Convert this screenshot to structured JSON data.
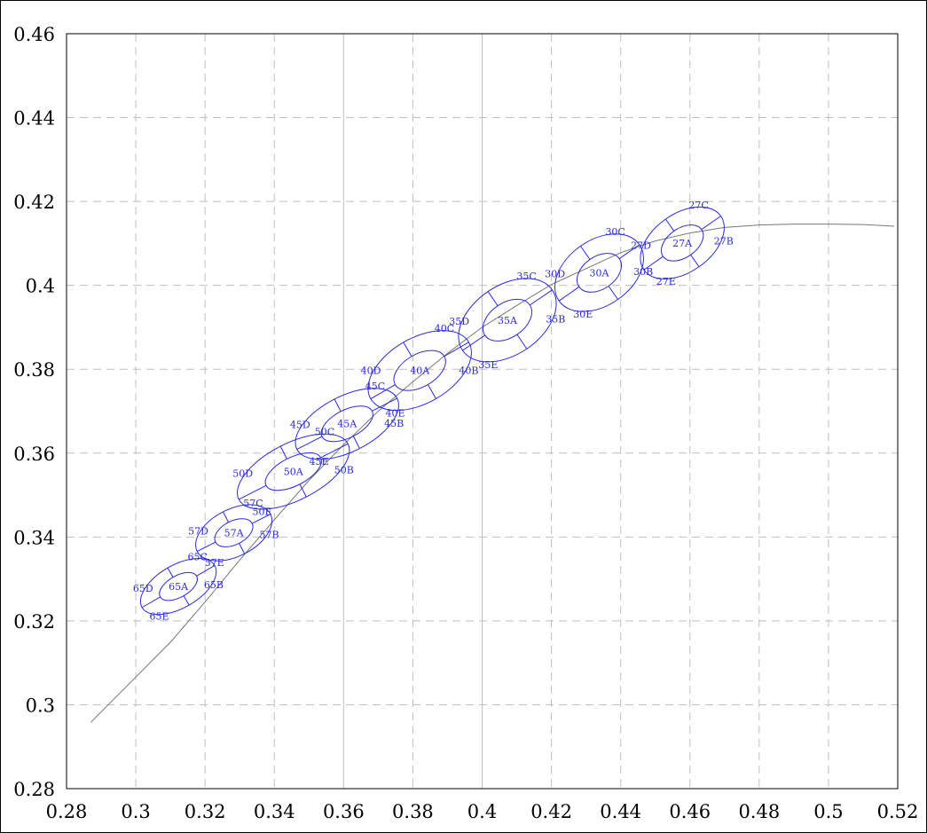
{
  "chart_data": {
    "type": "scatter",
    "title": "",
    "xlabel": "",
    "ylabel": "",
    "xlim": [
      0.28,
      0.52
    ],
    "ylim": [
      0.28,
      0.46
    ],
    "x_ticks": [
      0.28,
      0.3,
      0.32,
      0.34,
      0.36,
      0.38,
      0.4,
      0.42,
      0.44,
      0.46,
      0.48,
      0.5,
      0.52
    ],
    "x_tick_labels": [
      "0.28",
      "0.3",
      "0.32",
      "0.34",
      "0.36",
      "0.38",
      "0.4",
      "0.42",
      "0.44",
      "0.46",
      "0.48",
      "0.5",
      "0.52"
    ],
    "y_ticks": [
      0.28,
      0.3,
      0.32,
      0.34,
      0.36,
      0.38,
      0.4,
      0.42,
      0.44,
      0.46
    ],
    "y_tick_labels": [
      "0.28",
      "0.3",
      "0.32",
      "0.34",
      "0.36",
      "0.38",
      "0.4",
      "0.42",
      "0.44",
      "0.46"
    ],
    "grid": true,
    "colors": {
      "ellipse": "#2a2ae0",
      "curve": "#777777",
      "grid": "#bfbfbf"
    },
    "curve": {
      "x": [
        0.287,
        0.3,
        0.31,
        0.32,
        0.33,
        0.34,
        0.35,
        0.36,
        0.37,
        0.38,
        0.39,
        0.4,
        0.41,
        0.42,
        0.43,
        0.44,
        0.45,
        0.46,
        0.47,
        0.48,
        0.49,
        0.5,
        0.51,
        0.519
      ],
      "y": [
        0.2958,
        0.3066,
        0.3149,
        0.3245,
        0.3345,
        0.3441,
        0.3535,
        0.362,
        0.37,
        0.377,
        0.3838,
        0.39,
        0.3952,
        0.4002,
        0.404,
        0.4078,
        0.4106,
        0.4125,
        0.4138,
        0.4144,
        0.4146,
        0.4146,
        0.4145,
        0.4141
      ]
    },
    "ellipses": [
      {
        "cct": "65",
        "x": 0.3123,
        "y": 0.3282,
        "a": 0.0031,
        "b": 0.01,
        "angle": 60
      },
      {
        "cct": "57",
        "x": 0.3283,
        "y": 0.341,
        "a": 0.0034,
        "b": 0.0098,
        "angle": 63
      },
      {
        "cct": "50",
        "x": 0.3455,
        "y": 0.3556,
        "a": 0.0041,
        "b": 0.0146,
        "angle": 63
      },
      {
        "cct": "45",
        "x": 0.361,
        "y": 0.367,
        "a": 0.004,
        "b": 0.0134,
        "angle": 63
      },
      {
        "cct": "40",
        "x": 0.382,
        "y": 0.3797,
        "a": 0.0047,
        "b": 0.0135,
        "angle": 60
      },
      {
        "cct": "35",
        "x": 0.4073,
        "y": 0.3917,
        "a": 0.005,
        "b": 0.0129,
        "angle": 56
      },
      {
        "cct": "30",
        "x": 0.4338,
        "y": 0.403,
        "a": 0.0047,
        "b": 0.0117,
        "angle": 55
      },
      {
        "cct": "27",
        "x": 0.4578,
        "y": 0.4101,
        "a": 0.0042,
        "b": 0.0112,
        "angle": 55
      }
    ],
    "quadrant_labels": [
      "65A",
      "65B",
      "65C",
      "65D",
      "65E",
      "57A",
      "57B",
      "57C",
      "57D",
      "57E",
      "50A",
      "50B",
      "50C",
      "50D",
      "50E",
      "45A",
      "45B",
      "45C",
      "45D",
      "45E",
      "40A",
      "40B",
      "40C",
      "40D",
      "40E",
      "35A",
      "35B",
      "35C",
      "35D",
      "35E",
      "30A",
      "30B",
      "30C",
      "30D",
      "30E",
      "27A",
      "27B",
      "27C",
      "27D",
      "27E"
    ]
  }
}
